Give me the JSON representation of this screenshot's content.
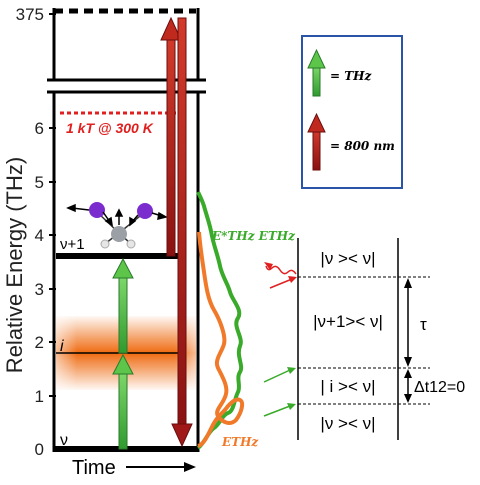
{
  "axis": {
    "ylabel": "Relative Energy (THz)",
    "xlabel": "Time",
    "ticks": [
      "0",
      "1",
      "2",
      "3",
      "4",
      "5",
      "6",
      "375"
    ]
  },
  "levels": {
    "v": "ν",
    "v1": "ν+1",
    "i": "i",
    "kt": "1 kT @ 300 K"
  },
  "legend": {
    "thz": "= THz",
    "nm800": "= 800 nm"
  },
  "spectra": {
    "product": "E*THz ETHz",
    "field": "ETHz"
  },
  "diagram": {
    "states": [
      "|ν >< ν|",
      "|ν+1>< ν|",
      "| i >< ν|",
      "|ν >< ν|"
    ],
    "tau": "τ",
    "dt": "Δt12=0"
  },
  "colors": {
    "thz_arrow": "#3cb43c",
    "nm800_arrow": "#b01e1e",
    "kt_line": "#e02020",
    "orange": "#f07a2a",
    "green_trace": "#3aaa2a",
    "legend_border": "#2a55a6"
  }
}
